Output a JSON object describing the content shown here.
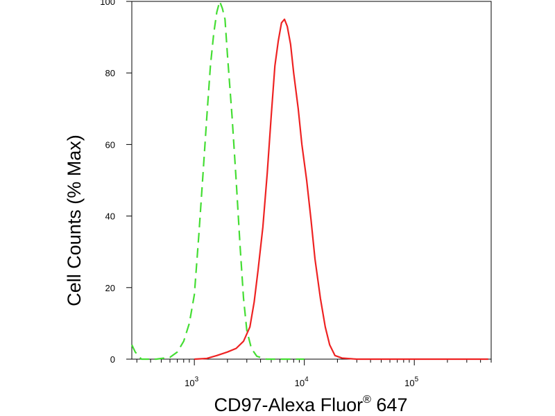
{
  "chart_data": {
    "type": "line",
    "title": "",
    "xlabel": "CD97-Alexa Fluor",
    "xlabel_mark": "®",
    "xlabel_suffix": " 647",
    "ylabel": "Cell Counts (% Max)",
    "x_scale": "log",
    "xlim": [
      270,
      500000
    ],
    "ylim": [
      0,
      100
    ],
    "y_ticks": [
      0,
      20,
      40,
      60,
      80,
      100
    ],
    "x_ticks": [
      {
        "base": "10",
        "exp": "3",
        "value": 1000
      },
      {
        "base": "10",
        "exp": "4",
        "value": 10000
      },
      {
        "base": "10",
        "exp": "5",
        "value": 100000
      }
    ],
    "grid": false,
    "series": [
      {
        "color": "#44dd33",
        "dash": "dashed",
        "points": [
          [
            270,
            4
          ],
          [
            290,
            2
          ],
          [
            330,
            0
          ],
          [
            450,
            0
          ],
          [
            600,
            0.5
          ],
          [
            700,
            2
          ],
          [
            800,
            5
          ],
          [
            900,
            10
          ],
          [
            1000,
            18
          ],
          [
            1100,
            35
          ],
          [
            1200,
            52
          ],
          [
            1300,
            68
          ],
          [
            1400,
            82
          ],
          [
            1500,
            91
          ],
          [
            1600,
            97
          ],
          [
            1700,
            100
          ],
          [
            1800,
            98
          ],
          [
            1900,
            95
          ],
          [
            2000,
            85
          ],
          [
            2200,
            68
          ],
          [
            2400,
            50
          ],
          [
            2600,
            32
          ],
          [
            2800,
            17
          ],
          [
            3000,
            8
          ],
          [
            3300,
            3
          ],
          [
            3700,
            0.8
          ],
          [
            4500,
            0
          ],
          [
            7000,
            0
          ],
          [
            10000,
            0
          ]
        ]
      },
      {
        "color": "#ee2222",
        "dash": "solid",
        "points": [
          [
            1000,
            0
          ],
          [
            1300,
            0.2
          ],
          [
            1600,
            1
          ],
          [
            2000,
            2
          ],
          [
            2400,
            3
          ],
          [
            2800,
            5
          ],
          [
            3200,
            9
          ],
          [
            3500,
            16
          ],
          [
            3800,
            25
          ],
          [
            4200,
            37
          ],
          [
            4600,
            52
          ],
          [
            5000,
            68
          ],
          [
            5400,
            82
          ],
          [
            5800,
            89
          ],
          [
            6200,
            94
          ],
          [
            6600,
            95
          ],
          [
            7000,
            93
          ],
          [
            7500,
            88
          ],
          [
            8000,
            80
          ],
          [
            8800,
            70
          ],
          [
            9500,
            60
          ],
          [
            10500,
            50
          ],
          [
            11500,
            39
          ],
          [
            12500,
            28
          ],
          [
            14000,
            17
          ],
          [
            15500,
            9
          ],
          [
            17000,
            4
          ],
          [
            19000,
            1
          ],
          [
            22000,
            0.3
          ],
          [
            30000,
            0
          ],
          [
            100000,
            0
          ],
          [
            470000,
            0
          ]
        ]
      }
    ]
  }
}
